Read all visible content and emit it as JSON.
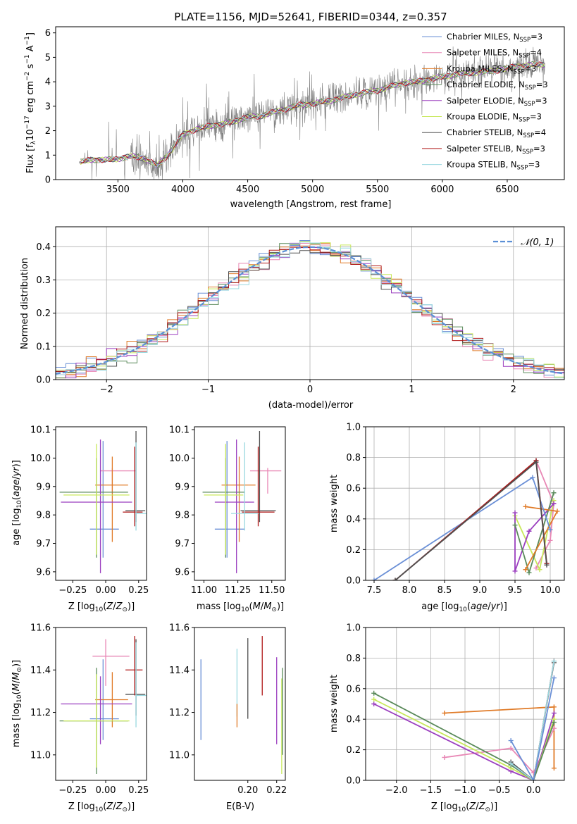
{
  "chart_data": [
    {
      "id": "spectrum",
      "type": "line",
      "title": "PLATE=1156, MJD=52641, FIBERID=0344, z=0.357",
      "xlabel": "wavelength [Angstrom, rest frame]",
      "ylabel": "Flux [fλ10⁻¹⁷ erg cm⁻² s⁻¹ A⁻¹]",
      "xlim": [
        3020,
        6940
      ],
      "ylim": [
        0,
        6.25
      ],
      "xticks": [
        3500,
        4000,
        4500,
        5000,
        5500,
        6000,
        6500
      ],
      "yticks": [
        0,
        1,
        2,
        3,
        4,
        5,
        6
      ],
      "grid": false,
      "legend_position": "top-right",
      "data_color": "#808080",
      "continuum": {
        "x": [
          3200,
          3300,
          3400,
          3500,
          3600,
          3700,
          3800,
          3900,
          4000,
          4100,
          4200,
          4300,
          4400,
          4500,
          4600,
          4700,
          4800,
          4900,
          5000,
          5100,
          5200,
          5300,
          5400,
          5500,
          5600,
          5700,
          5800,
          5900,
          6000,
          6100,
          6200,
          6300,
          6400,
          6500,
          6600,
          6700,
          6790
        ],
        "y": [
          0.7,
          0.82,
          0.8,
          0.85,
          0.95,
          0.9,
          0.55,
          1.1,
          1.85,
          2.05,
          2.2,
          2.25,
          2.4,
          2.55,
          2.6,
          2.75,
          2.9,
          3.05,
          3.1,
          3.2,
          3.3,
          3.45,
          3.55,
          3.65,
          3.8,
          3.95,
          4.0,
          4.1,
          4.2,
          4.3,
          4.35,
          4.4,
          4.45,
          4.55,
          4.65,
          4.7,
          4.7
        ]
      },
      "series": [
        {
          "name": "Chabrier MILES, N_SSP=3",
          "label_main": "Chabrier MILES, N",
          "label_sub": "SSP",
          "label_end": "=3",
          "color": "#6a8fd6"
        },
        {
          "name": "Salpeter MILES, N_SSP=4",
          "label_main": "Salpeter MILES, N",
          "label_sub": "SSP",
          "label_end": "=4",
          "color": "#e887b5"
        },
        {
          "name": "Kroupa MILES, N_SSP=3",
          "label_main": "Kroupa MILES, N",
          "label_sub": "SSP",
          "label_end": "=3",
          "color": "#e07b28"
        },
        {
          "name": "Chabrier ELODIE, N_SSP=3",
          "label_main": "Chabrier ELODIE, N",
          "label_sub": "SSP",
          "label_end": "=3",
          "color": "#5a8a5a"
        },
        {
          "name": "Salpeter ELODIE, N_SSP=3",
          "label_main": "Salpeter ELODIE, N",
          "label_sub": "SSP",
          "label_end": "=3",
          "color": "#9b3fbf"
        },
        {
          "name": "Kroupa ELODIE, N_SSP=3",
          "label_main": "Kroupa ELODIE, N",
          "label_sub": "SSP",
          "label_end": "=3",
          "color": "#c8e85a"
        },
        {
          "name": "Chabrier STELIB, N_SSP=4",
          "label_main": "Chabrier STELIB, N",
          "label_sub": "SSP",
          "label_end": "=4",
          "color": "#505050"
        },
        {
          "name": "Salpeter STELIB, N_SSP=3",
          "label_main": "Salpeter STELIB, N",
          "label_sub": "SSP",
          "label_end": "=3",
          "color": "#b01818"
        },
        {
          "name": "Kroupa STELIB, N_SSP=3",
          "label_main": "Kroupa STELIB, N",
          "label_sub": "SSP",
          "label_end": "=3",
          "color": "#9ad8e0"
        }
      ]
    },
    {
      "id": "residuals",
      "type": "histogram",
      "xlabel": "(data-model)/error",
      "ylabel": "Normed distribution",
      "xlim": [
        -2.5,
        2.5
      ],
      "ylim": [
        0,
        0.46
      ],
      "xticks": [
        -2,
        -1,
        0,
        1,
        2
      ],
      "yticks": [
        0.0,
        0.1,
        0.2,
        0.3,
        0.4
      ],
      "grid": true,
      "legend_position": "top-right",
      "legend_label": "𝒩(0, 1)",
      "normal_curve": {
        "mu": 0,
        "sigma": 1,
        "color": "#5b8fd6"
      },
      "bin_width": 0.1,
      "bin_start": -2.5
    },
    {
      "id": "age-vs-z",
      "type": "errorbar",
      "xlabel": "Z [log10(Z/Z☉)]",
      "ylabel": "age  [log10(age/yr)]",
      "xlim": [
        -0.38,
        0.31
      ],
      "ylim": [
        9.57,
        10.11
      ],
      "xticks": [
        -0.25,
        0.0,
        0.25
      ],
      "xtick_labels": [
        "−0.25",
        "0.00",
        "0.25"
      ],
      "yticks": [
        9.6,
        9.7,
        9.8,
        9.9,
        10.0,
        10.1
      ],
      "grid": false,
      "points": [
        {
          "x": -0.02,
          "xerr": [
            0.1,
            0.12
          ],
          "y": 9.75,
          "yerr": [
            0.1,
            0.31
          ],
          "color": "#6a8fd6"
        },
        {
          "x": 0.05,
          "xerr": [
            0.09,
            0.18
          ],
          "y": 9.955,
          "yerr": [
            0.08,
            0.01
          ],
          "color": "#e887b5"
        },
        {
          "x": 0.05,
          "xerr": [
            0.13,
            0.12
          ],
          "y": 9.905,
          "yerr": [
            0.2,
            0.1
          ],
          "color": "#e07b28"
        },
        {
          "x": -0.07,
          "xerr": [
            0.28,
            0.24
          ],
          "y": 9.88,
          "yerr": [
            0.23,
            0.12
          ],
          "color": "#5a8a5a"
        },
        {
          "x": -0.04,
          "xerr": [
            0.3,
            0.24
          ],
          "y": 9.845,
          "yerr": [
            0.25,
            0.22
          ],
          "color": "#9b3fbf"
        },
        {
          "x": -0.07,
          "xerr": [
            0.25,
            0.25
          ],
          "y": 9.87,
          "yerr": [
            0.21,
            0.18
          ],
          "color": "#c8e85a"
        },
        {
          "x": 0.23,
          "xerr": [
            0.08,
            0.07
          ],
          "y": 9.815,
          "yerr": [
            0.04,
            0.28
          ],
          "color": "#505050"
        },
        {
          "x": 0.22,
          "xerr": [
            0.09,
            0.06
          ],
          "y": 9.81,
          "yerr": [
            0.05,
            0.23
          ],
          "color": "#b01818"
        },
        {
          "x": 0.23,
          "xerr": [
            0.0,
            0.08
          ],
          "y": 9.805,
          "yerr": [
            0.06,
            0.25
          ],
          "color": "#9ad8e0"
        }
      ]
    },
    {
      "id": "age-vs-mass",
      "type": "errorbar",
      "xlabel": "mass [log10(M/M☉)]",
      "ylabel": "",
      "xlim": [
        10.93,
        11.6
      ],
      "ylim": [
        9.57,
        10.11
      ],
      "xticks": [
        11.0,
        11.25,
        11.5
      ],
      "xtick_labels": [
        "11.00",
        "11.25",
        "11.50"
      ],
      "yticks": [
        9.6,
        9.7,
        9.8,
        9.9,
        10.0,
        10.1
      ],
      "grid": false,
      "points": [
        {
          "x": 11.17,
          "xerr": [
            0.09,
            0.13
          ],
          "y": 9.75,
          "yerr": [
            0.1,
            0.31
          ],
          "color": "#6a8fd6"
        },
        {
          "x": 11.47,
          "xerr": [
            0.13,
            0.1
          ],
          "y": 9.955,
          "yerr": [
            0.08,
            0.01
          ],
          "color": "#e887b5"
        },
        {
          "x": 11.26,
          "xerr": [
            0.13,
            0.12
          ],
          "y": 9.905,
          "yerr": [
            0.2,
            0.1
          ],
          "color": "#e07b28"
        },
        {
          "x": 11.16,
          "xerr": [
            0.17,
            0.14
          ],
          "y": 9.88,
          "yerr": [
            0.23,
            0.12
          ],
          "color": "#5a8a5a"
        },
        {
          "x": 11.24,
          "xerr": [
            0.16,
            0.13
          ],
          "y": 9.845,
          "yerr": [
            0.25,
            0.22
          ],
          "color": "#9b3fbf"
        },
        {
          "x": 11.16,
          "xerr": [
            0.16,
            0.13
          ],
          "y": 9.87,
          "yerr": [
            0.21,
            0.18
          ],
          "color": "#c8e85a"
        },
        {
          "x": 11.41,
          "xerr": [
            0.14,
            0.12
          ],
          "y": 9.815,
          "yerr": [
            0.04,
            0.28
          ],
          "color": "#505050"
        },
        {
          "x": 11.4,
          "xerr": [
            0.12,
            0.12
          ],
          "y": 9.81,
          "yerr": [
            0.05,
            0.23
          ],
          "color": "#b01818"
        },
        {
          "x": 11.3,
          "xerr": [
            0.1,
            0.1
          ],
          "y": 9.805,
          "yerr": [
            0.06,
            0.25
          ],
          "color": "#9ad8e0"
        }
      ]
    },
    {
      "id": "weight-vs-age",
      "type": "line",
      "xlabel": "age  [log10(age/yr)]",
      "ylabel": "mass weight",
      "xlim": [
        7.38,
        10.2
      ],
      "ylim": [
        0,
        1.0
      ],
      "xticks": [
        7.5,
        8.0,
        8.5,
        9.0,
        9.5,
        10.0
      ],
      "xtick_labels": [
        "7.5",
        "8.0",
        "8.5",
        "9.0",
        "9.5",
        "10.0"
      ],
      "yticks": [
        0.0,
        0.2,
        0.4,
        0.6,
        0.8,
        1.0
      ],
      "grid": true,
      "series": [
        {
          "color": "#e887b5",
          "x": [
            9.8,
            10.05,
            10.0,
            9.8
          ],
          "y": [
            0.78,
            0.5,
            0.26,
            0.08
          ]
        },
        {
          "color": "#c8e85a",
          "x": [
            9.5,
            9.85,
            10.05
          ],
          "y": [
            0.42,
            0.07,
            0.52
          ]
        },
        {
          "color": "#9b3fbf",
          "x": [
            9.5,
            9.5,
            9.7,
            10.05
          ],
          "y": [
            0.44,
            0.06,
            0.32,
            0.5
          ]
        },
        {
          "color": "#5a8a5a",
          "x": [
            9.5,
            9.7,
            10.05
          ],
          "y": [
            0.36,
            0.05,
            0.57
          ]
        },
        {
          "color": "#e07b28",
          "x": [
            9.65,
            10.1,
            9.65
          ],
          "y": [
            0.07,
            0.45,
            0.48
          ]
        },
        {
          "color": "#6a8fd6",
          "x": [
            7.5,
            9.75,
            10.0
          ],
          "y": [
            0.0,
            0.67,
            0.33
          ]
        },
        {
          "color": "#9ad8e0",
          "x": [
            7.8,
            9.8,
            9.95
          ],
          "y": [
            0.0,
            0.78,
            0.11
          ]
        },
        {
          "color": "#b01818",
          "x": [
            7.8,
            9.8,
            9.95
          ],
          "y": [
            0.0,
            0.78,
            0.11
          ]
        },
        {
          "color": "#505050",
          "x": [
            7.8,
            9.8,
            9.95
          ],
          "y": [
            0.0,
            0.77,
            0.1
          ]
        }
      ]
    },
    {
      "id": "mass-vs-z",
      "type": "errorbar",
      "xlabel": "Z [log10(Z/Z☉)]",
      "ylabel": "mass [log10(M/M☉)]",
      "xlim": [
        -0.38,
        0.31
      ],
      "ylim": [
        10.88,
        11.6
      ],
      "xticks": [
        -0.25,
        0.0,
        0.25
      ],
      "xtick_labels": [
        "−0.25",
        "0.00",
        "0.25"
      ],
      "yticks": [
        11.0,
        11.2,
        11.4,
        11.6
      ],
      "grid": false,
      "points": [
        {
          "x": -0.02,
          "xerr": [
            0.1,
            0.12
          ],
          "y": 11.17,
          "yerr": [
            0.1,
            0.28
          ],
          "color": "#6a8fd6"
        },
        {
          "x": 0.0,
          "xerr": [
            0.1,
            0.18
          ],
          "y": 11.465,
          "yerr": [
            0.14,
            0.08
          ],
          "color": "#e887b5"
        },
        {
          "x": 0.05,
          "xerr": [
            0.13,
            0.12
          ],
          "y": 11.26,
          "yerr": [
            0.13,
            0.13
          ],
          "color": "#e07b28"
        },
        {
          "x": -0.07,
          "xerr": [
            0.28,
            0.24
          ],
          "y": 11.16,
          "yerr": [
            0.25,
            0.25
          ],
          "color": "#5a8a5a"
        },
        {
          "x": -0.04,
          "xerr": [
            0.3,
            0.24
          ],
          "y": 11.24,
          "yerr": [
            0.19,
            0.13
          ],
          "color": "#9b3fbf"
        },
        {
          "x": -0.07,
          "xerr": [
            0.25,
            0.25
          ],
          "y": 11.16,
          "yerr": [
            0.22,
            0.22
          ],
          "color": "#c8e85a"
        },
        {
          "x": 0.23,
          "xerr": [
            0.08,
            0.07
          ],
          "y": 11.285,
          "yerr": [
            0.1,
            0.26
          ],
          "color": "#505050"
        },
        {
          "x": 0.22,
          "xerr": [
            0.07,
            0.06
          ],
          "y": 11.4,
          "yerr": [
            0.12,
            0.16
          ],
          "color": "#b01818"
        },
        {
          "x": 0.23,
          "xerr": [
            0.0,
            0.08
          ],
          "y": 11.28,
          "yerr": [
            0.15,
            0.25
          ],
          "color": "#9ad8e0"
        }
      ]
    },
    {
      "id": "mass-vs-ebv",
      "type": "errorbar",
      "xlabel": "E(B-V)",
      "ylabel": "",
      "xlim": [
        0.163,
        0.226
      ],
      "ylim": [
        10.88,
        11.6
      ],
      "xticks": [
        0.2,
        0.22
      ],
      "xtick_labels": [
        "0.20",
        "0.22"
      ],
      "yticks": [
        11.0,
        11.2,
        11.4,
        11.6
      ],
      "grid": false,
      "points": [
        {
          "x": 0.1675,
          "xerr": [
            0,
            0
          ],
          "y": 11.26,
          "yerr": [
            0.19,
            0.19
          ],
          "color": "#6a8fd6"
        },
        {
          "x": 0.1925,
          "xerr": [
            0,
            0
          ],
          "y": 11.33,
          "yerr": [
            0.15,
            0.17
          ],
          "color": "#9ad8e0"
        },
        {
          "x": 0.1925,
          "xerr": [
            0,
            0
          ],
          "y": 11.24,
          "yerr": [
            0.11,
            0.0
          ],
          "color": "#e07b28"
        },
        {
          "x": 0.2,
          "xerr": [
            0,
            0
          ],
          "y": 11.36,
          "yerr": [
            0.19,
            0.19
          ],
          "color": "#505050"
        },
        {
          "x": 0.21,
          "xerr": [
            0,
            0
          ],
          "y": 11.42,
          "yerr": [
            0.14,
            0.14
          ],
          "color": "#b01818"
        },
        {
          "x": 0.22,
          "xerr": [
            0,
            0
          ],
          "y": 11.25,
          "yerr": [
            0.2,
            0.21
          ],
          "color": "#9b3fbf"
        },
        {
          "x": 0.2235,
          "xerr": [
            0,
            0
          ],
          "y": 11.15,
          "yerr": [
            0.24,
            0.21
          ],
          "color": "#c8e85a"
        },
        {
          "x": 0.224,
          "xerr": [
            0,
            0
          ],
          "y": 11.2,
          "yerr": [
            0.2,
            0.21
          ],
          "color": "#5a8a5a"
        }
      ]
    },
    {
      "id": "weight-vs-z",
      "type": "line",
      "xlabel": "Z [log10(Z/Z☉)]",
      "ylabel": "mass weight",
      "xlim": [
        -2.45,
        0.45
      ],
      "ylim": [
        0,
        1.0
      ],
      "xticks": [
        -2.0,
        -1.5,
        -1.0,
        -0.5,
        0.0
      ],
      "xtick_labels": [
        "−2.0",
        "−1.5",
        "−1.0",
        "−0.5",
        "0.0"
      ],
      "yticks": [
        0.0,
        0.2,
        0.4,
        0.6,
        0.8,
        1.0
      ],
      "grid": true,
      "series": [
        {
          "color": "#e07b28",
          "x": [
            -1.3,
            0.3,
            0.3
          ],
          "y": [
            0.44,
            0.48,
            0.08
          ]
        },
        {
          "color": "#e887b5",
          "x": [
            -1.3,
            -0.33,
            0.0,
            0.3
          ],
          "y": [
            0.15,
            0.21,
            0.05,
            0.34
          ]
        },
        {
          "color": "#9b3fbf",
          "x": [
            -2.33,
            -0.33,
            0.0,
            0.3
          ],
          "y": [
            0.5,
            0.06,
            0.0,
            0.44
          ]
        },
        {
          "color": "#c8e85a",
          "x": [
            -2.33,
            -0.33,
            0.0,
            0.3
          ],
          "y": [
            0.53,
            0.08,
            0.0,
            0.4
          ]
        },
        {
          "color": "#5a8a5a",
          "x": [
            -2.33,
            -0.33,
            0.0,
            0.3
          ],
          "y": [
            0.57,
            0.1,
            0.0,
            0.38
          ]
        },
        {
          "color": "#505050",
          "x": [
            -0.33,
            0.0,
            0.3
          ],
          "y": [
            0.12,
            0.0,
            0.77
          ]
        },
        {
          "color": "#b01818",
          "x": [
            -0.33,
            0.0,
            0.3
          ],
          "y": [
            0.11,
            0.0,
            0.78
          ]
        },
        {
          "color": "#9ad8e0",
          "x": [
            -0.33,
            0.0,
            0.3
          ],
          "y": [
            0.11,
            0.0,
            0.78
          ]
        },
        {
          "color": "#6a8fd6",
          "x": [
            -0.33,
            0.0,
            0.3
          ],
          "y": [
            0.26,
            0.0,
            0.67
          ]
        }
      ]
    }
  ]
}
